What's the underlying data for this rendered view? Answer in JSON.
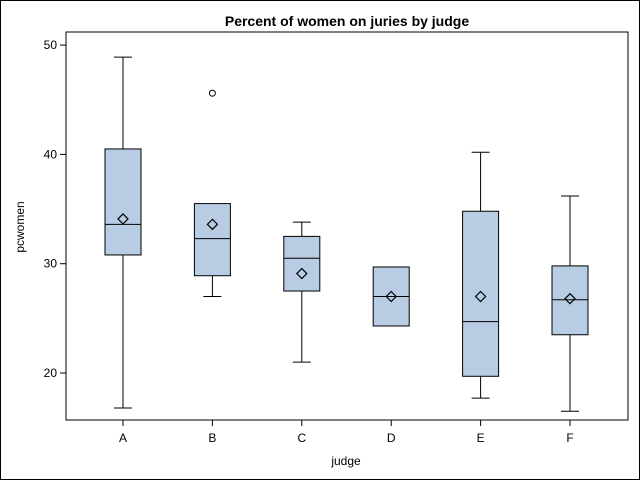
{
  "chart_data": {
    "type": "box",
    "title": "Percent of women on juries by judge",
    "xlabel": "judge",
    "ylabel": "pcwomen",
    "ylim": [
      15.7,
      51.2
    ],
    "yticks": [
      20,
      30,
      40,
      50
    ],
    "categories": [
      "A",
      "B",
      "C",
      "D",
      "E",
      "F"
    ],
    "boxes": [
      {
        "category": "A",
        "min": 16.8,
        "q1": 30.8,
        "median": 33.6,
        "q3": 40.5,
        "max": 48.9,
        "mean": 34.1,
        "outliers": []
      },
      {
        "category": "B",
        "min": 27.0,
        "q1": 28.9,
        "median": 32.3,
        "q3": 35.5,
        "max": 35.5,
        "mean": 33.6,
        "outliers": [
          45.6
        ]
      },
      {
        "category": "C",
        "min": 21.0,
        "q1": 27.5,
        "median": 30.5,
        "q3": 32.5,
        "max": 33.8,
        "mean": 29.1,
        "outliers": []
      },
      {
        "category": "D",
        "min": 24.3,
        "q1": 24.3,
        "median": 27.0,
        "q3": 29.7,
        "max": 29.7,
        "mean": 27.0,
        "outliers": []
      },
      {
        "category": "E",
        "min": 17.7,
        "q1": 19.7,
        "median": 24.7,
        "q3": 34.8,
        "max": 40.2,
        "mean": 27.0,
        "outliers": []
      },
      {
        "category": "F",
        "min": 16.5,
        "q1": 23.5,
        "median": 26.7,
        "q3": 29.8,
        "max": 36.2,
        "mean": 26.8,
        "outliers": []
      }
    ],
    "colors": {
      "box_fill": "#b8cce4",
      "line": "#000000"
    },
    "grid": false,
    "legend": "none"
  }
}
